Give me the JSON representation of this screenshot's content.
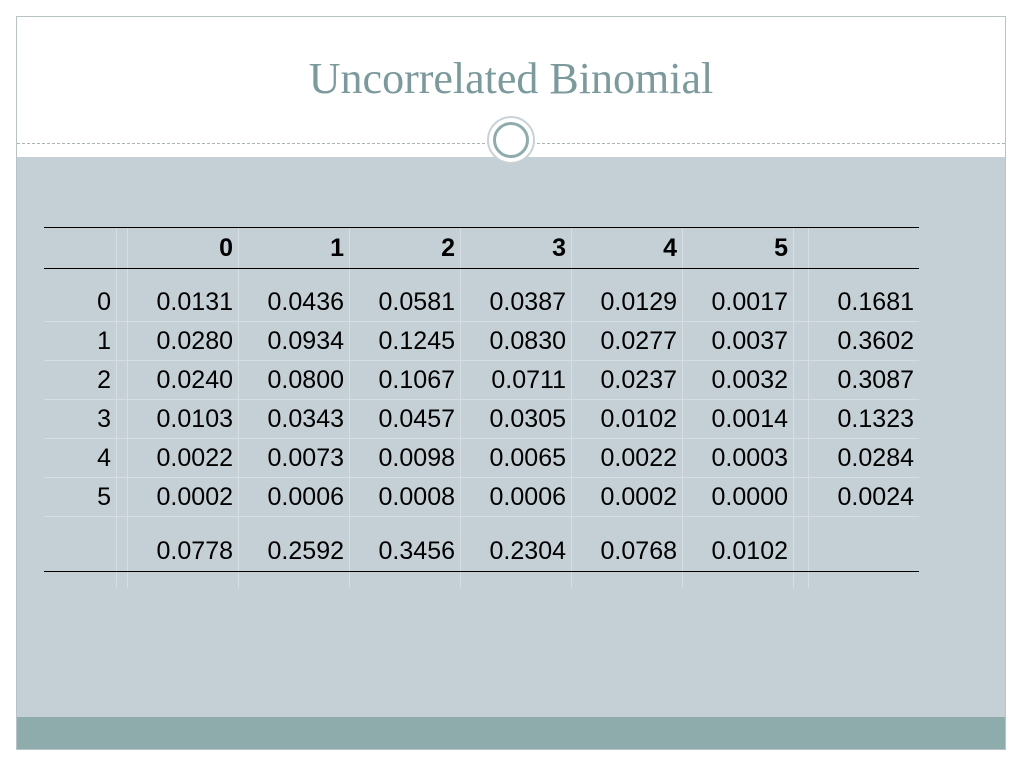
{
  "slide": {
    "title": "Uncorrelated Binomial"
  },
  "table": {
    "column_headers": [
      "0",
      "1",
      "2",
      "3",
      "4",
      "5"
    ],
    "rows": [
      {
        "label": "0",
        "values": [
          "0.0131",
          "0.0436",
          "0.0581",
          "0.0387",
          "0.0129",
          "0.0017"
        ],
        "total": "0.1681"
      },
      {
        "label": "1",
        "values": [
          "0.0280",
          "0.0934",
          "0.1245",
          "0.0830",
          "0.0277",
          "0.0037"
        ],
        "total": "0.3602"
      },
      {
        "label": "2",
        "values": [
          "0.0240",
          "0.0800",
          "0.1067",
          "0.0711",
          "0.0237",
          "0.0032"
        ],
        "total": "0.3087"
      },
      {
        "label": "3",
        "values": [
          "0.0103",
          "0.0343",
          "0.0457",
          "0.0305",
          "0.0102",
          "0.0014"
        ],
        "total": "0.1323"
      },
      {
        "label": "4",
        "values": [
          "0.0022",
          "0.0073",
          "0.0098",
          "0.0065",
          "0.0022",
          "0.0003"
        ],
        "total": "0.0284"
      },
      {
        "label": "5",
        "values": [
          "0.0002",
          "0.0006",
          "0.0008",
          "0.0006",
          "0.0002",
          "0.0000"
        ],
        "total": "0.0024"
      }
    ],
    "column_totals": [
      "0.0778",
      "0.2592",
      "0.3456",
      "0.2304",
      "0.0768",
      "0.0102"
    ]
  },
  "colors": {
    "title": "#7c9a9c",
    "content_background": "#c5d0d6",
    "footer_band": "#8eacac"
  }
}
